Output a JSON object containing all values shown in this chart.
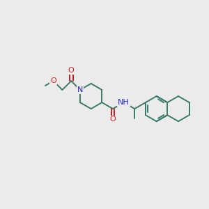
{
  "bg_color": "#ebebeb",
  "bond_color": "#3a7a6a",
  "N_color": "#2222cc",
  "O_color": "#cc2222",
  "H_color": "#888888",
  "lw": 1.4,
  "fs": 8.0,
  "figsize": [
    3.0,
    3.0
  ],
  "dpi": 100,
  "xlim": [
    0,
    10
  ],
  "ylim": [
    0,
    10
  ]
}
